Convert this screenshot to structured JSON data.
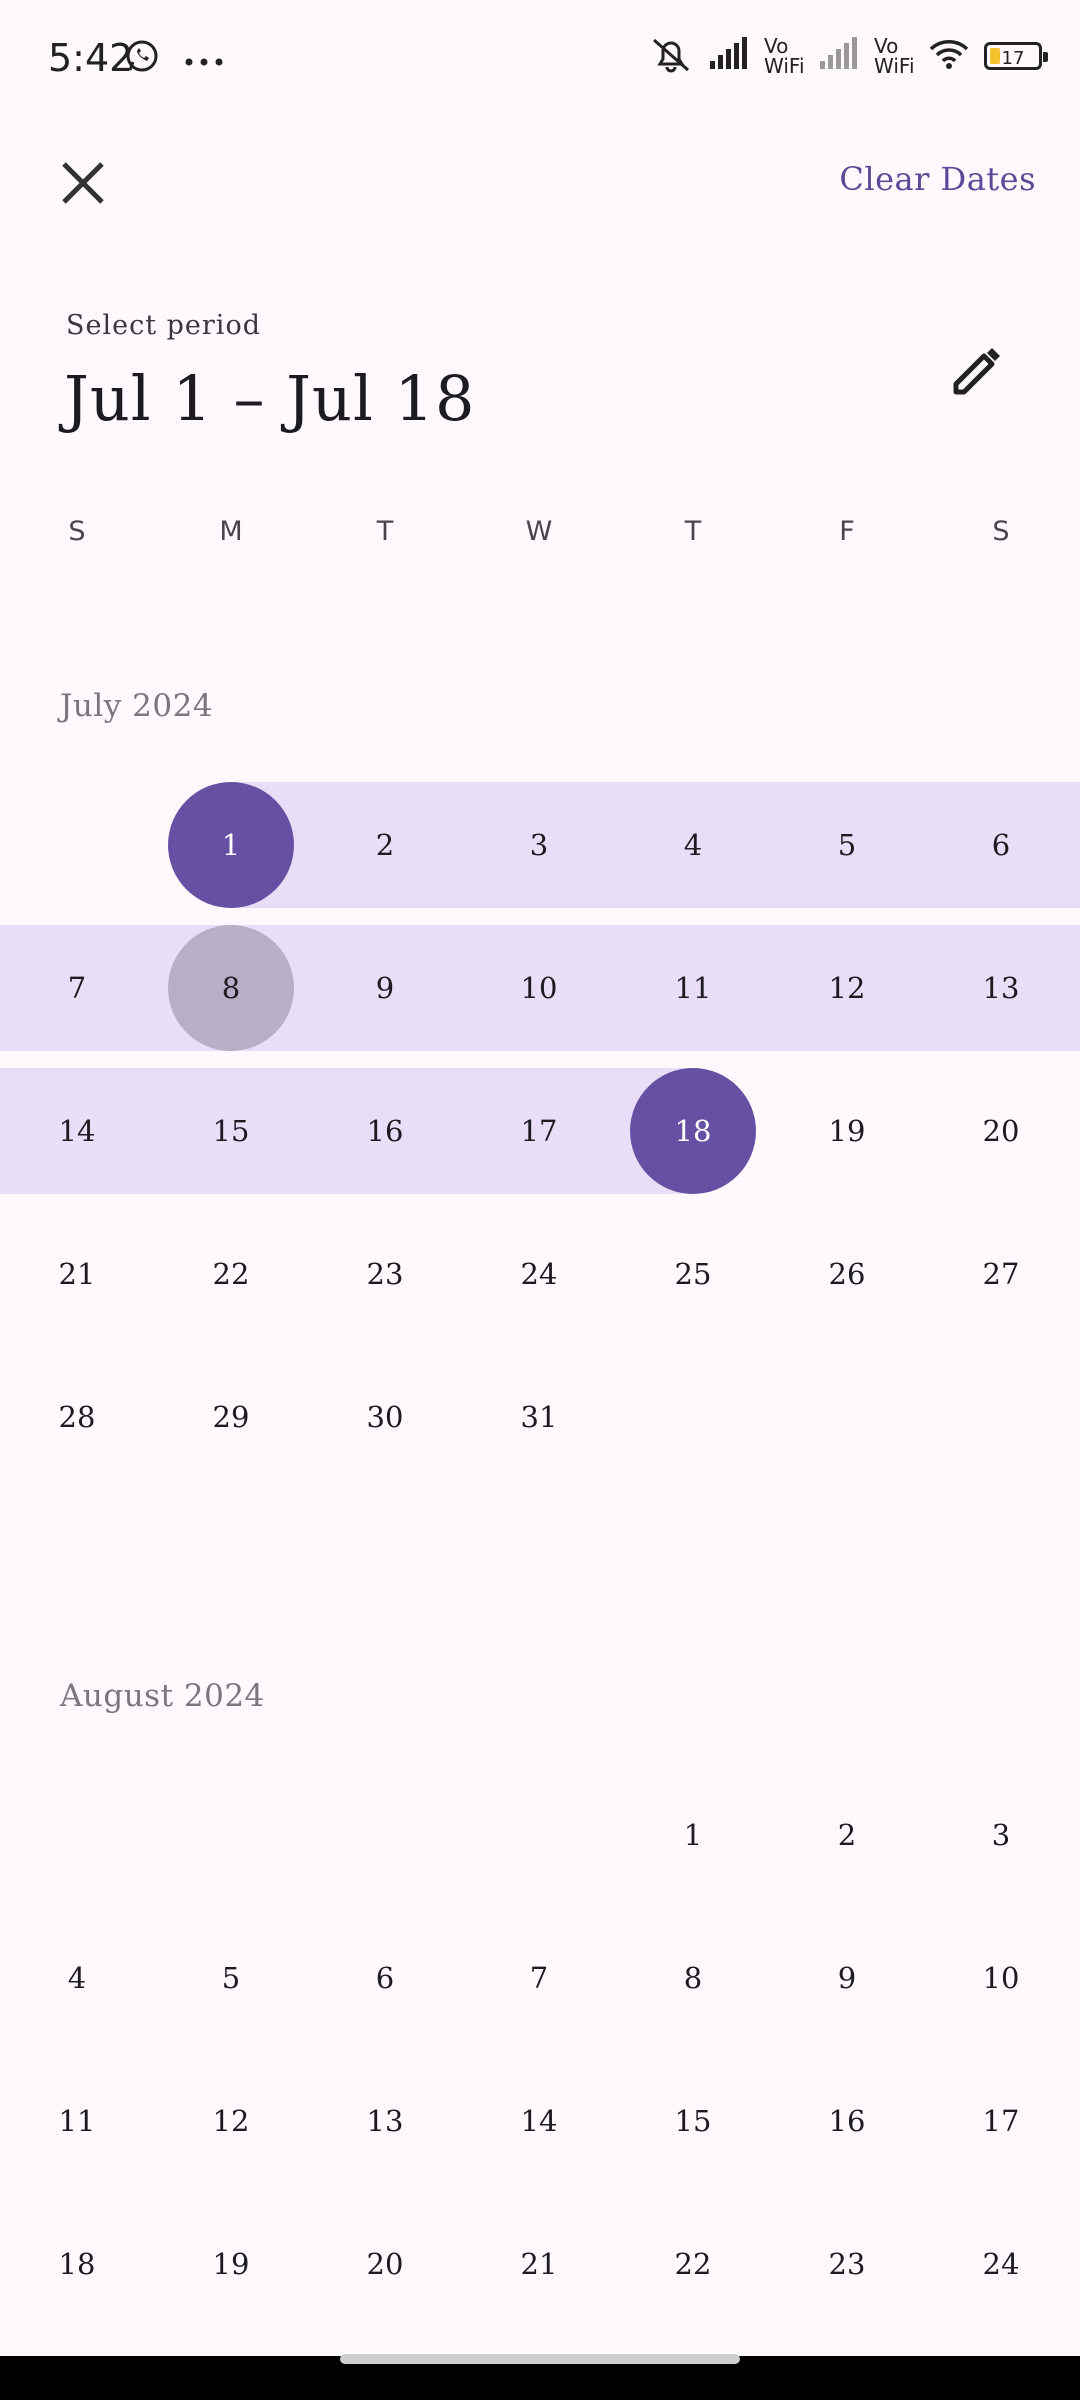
{
  "status_bar": {
    "time": "5:42",
    "vo_wifi_1": "Vo WiFi",
    "vo_wifi_2": "Vo WiFi",
    "battery": "17"
  },
  "header": {
    "clear_label": "Clear Dates",
    "select_label": "Select period",
    "range_title": "Jul 1 – Jul 18"
  },
  "weekdays": [
    "S",
    "M",
    "T",
    "W",
    "T",
    "F",
    "S"
  ],
  "months": [
    {
      "title": "July 2024",
      "weeks": [
        [
          "",
          "1",
          "2",
          "3",
          "4",
          "5",
          "6"
        ],
        [
          "7",
          "8",
          "9",
          "10",
          "11",
          "12",
          "13"
        ],
        [
          "14",
          "15",
          "16",
          "17",
          "18",
          "19",
          "20"
        ],
        [
          "21",
          "22",
          "23",
          "24",
          "25",
          "26",
          "27"
        ],
        [
          "28",
          "29",
          "30",
          "31",
          "",
          "",
          ""
        ]
      ]
    },
    {
      "title": "August 2024",
      "weeks": [
        [
          "",
          "",
          "",
          "",
          "1",
          "2",
          "3"
        ],
        [
          "4",
          "5",
          "6",
          "7",
          "8",
          "9",
          "10"
        ],
        [
          "11",
          "12",
          "13",
          "14",
          "15",
          "16",
          "17"
        ],
        [
          "18",
          "19",
          "20",
          "21",
          "22",
          "23",
          "24"
        ]
      ]
    }
  ],
  "selection": {
    "start_day": "1",
    "end_day": "18",
    "pressed_day": "8",
    "month": "July 2024"
  },
  "colors": {
    "accent": "#6750A4",
    "range": "#E8DEF8",
    "pressed": "#B8AFC6",
    "background": "#FFF8FC"
  }
}
